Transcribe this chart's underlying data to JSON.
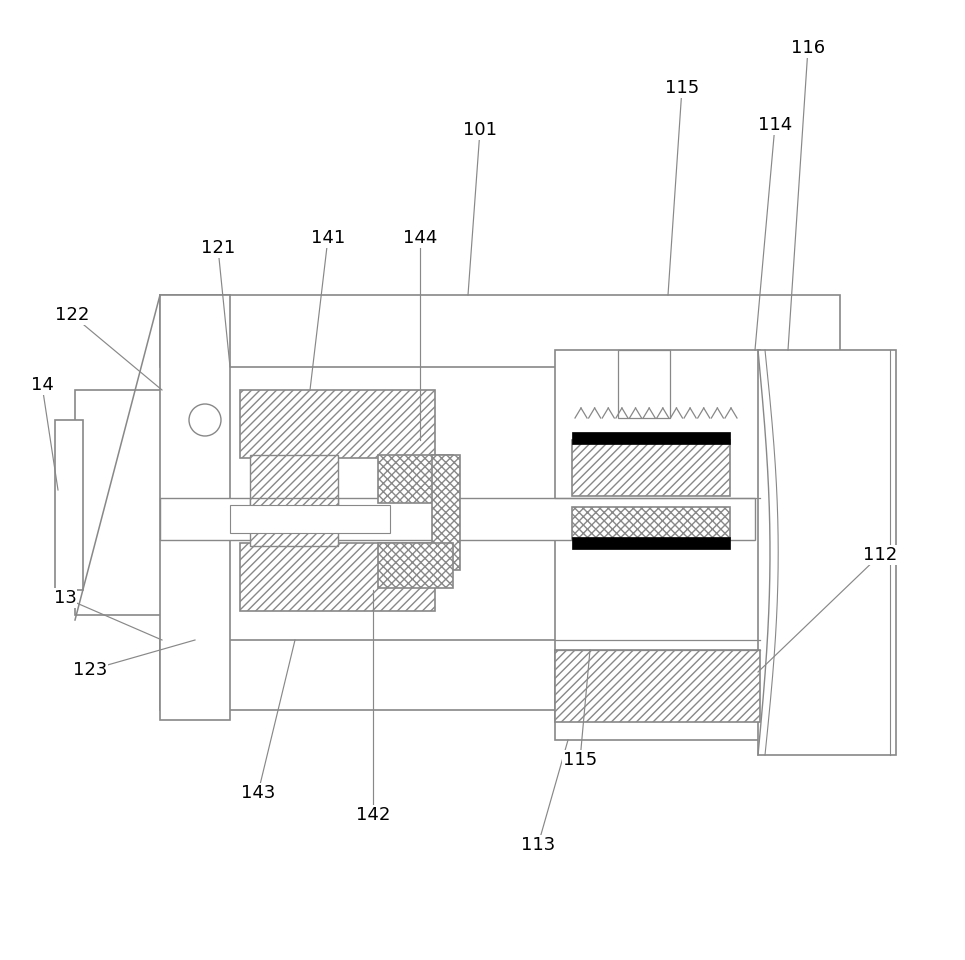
{
  "bg": "#ffffff",
  "lc": "#888888",
  "bc": "#000000",
  "figsize": [
    9.65,
    9.6
  ],
  "dpi": 100
}
